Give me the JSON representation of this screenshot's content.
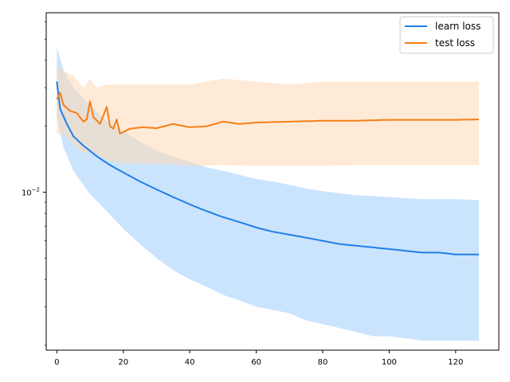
{
  "chart_data": {
    "type": "line",
    "title": "",
    "xlabel": "",
    "ylabel": "",
    "yscale": "log",
    "xlim": [
      -3.2,
      133.0
    ],
    "ylim": [
      0.0019,
      0.066
    ],
    "grid": false,
    "legend_position": "top-right",
    "x_ticks": [
      0,
      20,
      40,
      60,
      80,
      100,
      120
    ],
    "x_tick_labels": [
      "0",
      "20",
      "40",
      "60",
      "80",
      "100",
      "120"
    ],
    "y_major_ticks": [
      0.01
    ],
    "y_major_label_base": "10",
    "y_major_label_exp": "−2",
    "y_minor_ticks": [
      0.002,
      0.003,
      0.004,
      0.005,
      0.006,
      0.007,
      0.008,
      0.009,
      0.02,
      0.03,
      0.04,
      0.05,
      0.06
    ],
    "x_stride": 1,
    "series": [
      {
        "name": "learn loss",
        "color": "#1f77b4",
        "line_color": "#1f7fe6",
        "band_color": "#a8d2fb",
        "mean": [
          [
            0,
            0.032
          ],
          [
            1,
            0.024
          ],
          [
            3,
            0.0205
          ],
          [
            5,
            0.018
          ],
          [
            8,
            0.0163
          ],
          [
            12,
            0.0146
          ],
          [
            16,
            0.0133
          ],
          [
            20,
            0.0123
          ],
          [
            25,
            0.0112
          ],
          [
            30,
            0.0103
          ],
          [
            35,
            0.0095
          ],
          [
            40,
            0.0088
          ],
          [
            45,
            0.0082
          ],
          [
            50,
            0.0077
          ],
          [
            55,
            0.0073
          ],
          [
            60,
            0.0069
          ],
          [
            65,
            0.0066
          ],
          [
            70,
            0.0064
          ],
          [
            75,
            0.0062
          ],
          [
            80,
            0.006
          ],
          [
            85,
            0.0058
          ],
          [
            90,
            0.0057
          ],
          [
            95,
            0.0056
          ],
          [
            100,
            0.0055
          ],
          [
            105,
            0.0054
          ],
          [
            110,
            0.0053
          ],
          [
            115,
            0.0053
          ],
          [
            120,
            0.0052
          ],
          [
            127,
            0.0052
          ]
        ],
        "upper": [
          [
            0,
            0.046
          ],
          [
            2,
            0.036
          ],
          [
            5,
            0.03
          ],
          [
            10,
            0.025
          ],
          [
            15,
            0.021
          ],
          [
            20,
            0.019
          ],
          [
            25,
            0.017
          ],
          [
            30,
            0.0155
          ],
          [
            35,
            0.0145
          ],
          [
            40,
            0.0138
          ],
          [
            45,
            0.013
          ],
          [
            50,
            0.0125
          ],
          [
            55,
            0.012
          ],
          [
            60,
            0.0115
          ],
          [
            65,
            0.0112
          ],
          [
            70,
            0.0108
          ],
          [
            75,
            0.0104
          ],
          [
            80,
            0.0101
          ],
          [
            85,
            0.0099
          ],
          [
            90,
            0.0097
          ],
          [
            95,
            0.0096
          ],
          [
            100,
            0.0095
          ],
          [
            110,
            0.0093
          ],
          [
            120,
            0.0093
          ],
          [
            127,
            0.0092
          ]
        ],
        "lower": [
          [
            0,
            0.022
          ],
          [
            2,
            0.016
          ],
          [
            5,
            0.0125
          ],
          [
            10,
            0.0098
          ],
          [
            15,
            0.0082
          ],
          [
            20,
            0.0068
          ],
          [
            25,
            0.0058
          ],
          [
            30,
            0.005
          ],
          [
            35,
            0.0044
          ],
          [
            40,
            0.004
          ],
          [
            45,
            0.0037
          ],
          [
            50,
            0.0034
          ],
          [
            55,
            0.0032
          ],
          [
            60,
            0.003
          ],
          [
            65,
            0.0029
          ],
          [
            70,
            0.0028
          ],
          [
            75,
            0.0026
          ],
          [
            80,
            0.0025
          ],
          [
            85,
            0.0024
          ],
          [
            90,
            0.0023
          ],
          [
            95,
            0.0022
          ],
          [
            100,
            0.0022
          ],
          [
            110,
            0.0021
          ],
          [
            120,
            0.0021
          ],
          [
            127,
            0.0021
          ]
        ]
      },
      {
        "name": "test loss",
        "color": "#ff7f0e",
        "line_color": "#f57f16",
        "band_color": "#ffd9b6",
        "mean": [
          [
            0,
            0.0265
          ],
          [
            1,
            0.0285
          ],
          [
            2,
            0.025
          ],
          [
            4,
            0.0235
          ],
          [
            6,
            0.023
          ],
          [
            8,
            0.021
          ],
          [
            9,
            0.0215
          ],
          [
            10,
            0.026
          ],
          [
            11,
            0.022
          ],
          [
            13,
            0.0205
          ],
          [
            15,
            0.0245
          ],
          [
            16,
            0.02
          ],
          [
            17,
            0.0195
          ],
          [
            18,
            0.0215
          ],
          [
            19,
            0.0185
          ],
          [
            22,
            0.0195
          ],
          [
            26,
            0.0198
          ],
          [
            30,
            0.0196
          ],
          [
            35,
            0.0205
          ],
          [
            40,
            0.0198
          ],
          [
            45,
            0.02
          ],
          [
            50,
            0.021
          ],
          [
            55,
            0.0205
          ],
          [
            60,
            0.0208
          ],
          [
            70,
            0.021
          ],
          [
            80,
            0.0212
          ],
          [
            90,
            0.0212
          ],
          [
            100,
            0.0214
          ],
          [
            110,
            0.0214
          ],
          [
            120,
            0.0214
          ],
          [
            127,
            0.0215
          ]
        ],
        "upper": [
          [
            0,
            0.038
          ],
          [
            2,
            0.036
          ],
          [
            5,
            0.034
          ],
          [
            8,
            0.03
          ],
          [
            10,
            0.033
          ],
          [
            12,
            0.03
          ],
          [
            15,
            0.031
          ],
          [
            20,
            0.031
          ],
          [
            25,
            0.031
          ],
          [
            30,
            0.031
          ],
          [
            40,
            0.031
          ],
          [
            50,
            0.033
          ],
          [
            60,
            0.032
          ],
          [
            70,
            0.031
          ],
          [
            80,
            0.032
          ],
          [
            90,
            0.032
          ],
          [
            100,
            0.032
          ],
          [
            110,
            0.032
          ],
          [
            120,
            0.032
          ],
          [
            127,
            0.032
          ]
        ],
        "lower": [
          [
            0,
            0.0185
          ],
          [
            2,
            0.0185
          ],
          [
            5,
            0.0165
          ],
          [
            8,
            0.015
          ],
          [
            10,
            0.0155
          ],
          [
            15,
            0.014
          ],
          [
            20,
            0.0135
          ],
          [
            25,
            0.0135
          ],
          [
            30,
            0.0135
          ],
          [
            40,
            0.0132
          ],
          [
            50,
            0.0133
          ],
          [
            60,
            0.0132
          ],
          [
            70,
            0.0132
          ],
          [
            80,
            0.0132
          ],
          [
            90,
            0.0133
          ],
          [
            100,
            0.0133
          ],
          [
            110,
            0.0133
          ],
          [
            120,
            0.0133
          ],
          [
            127,
            0.0133
          ]
        ]
      }
    ]
  }
}
